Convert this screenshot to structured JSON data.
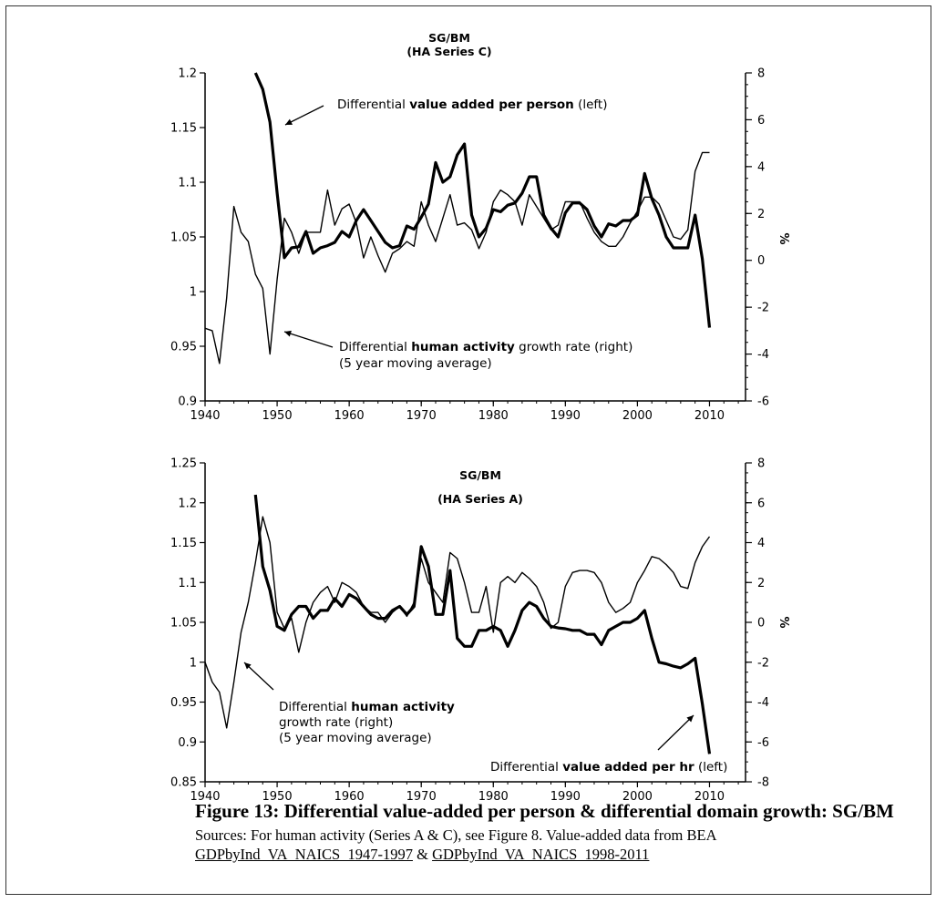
{
  "caption": {
    "title": "Figure 13: Differential value-added per person & differential domain growth: SG/BM",
    "sources_prefix": "Sources: For human activity (Series A & C), see Figure 8. Value-added data from BEA",
    "link1": "GDPbyInd_VA_NAICS_1947-1997",
    "amp": " & ",
    "link2": "GDPbyInd_VA_NAICS_1998-2011"
  },
  "chart_data": [
    {
      "type": "line",
      "title": "SG/BM",
      "subtitle": "(HA Series C)",
      "xlim": [
        1940,
        2015
      ],
      "x_ticks": [
        1940,
        1950,
        1960,
        1970,
        1980,
        1990,
        2000,
        2010
      ],
      "ylim_left": [
        0.9,
        1.2
      ],
      "y_ticks_left": [
        "0.9",
        "0.95",
        "1",
        "1.05",
        "1.1",
        "1.15",
        "1.2"
      ],
      "ylim_right": [
        -6,
        8
      ],
      "y_ticks_right": [
        "-6",
        "-4",
        "-2",
        "0",
        "2",
        "4",
        "6",
        "8"
      ],
      "ylabel_right": "%",
      "series": [
        {
          "axis": "left",
          "style": "bold",
          "annotation_pre": "Differential ",
          "annotation_bold": "value added per person",
          "annotation_post": " (left)",
          "x": [
            1947,
            1948,
            1949,
            1950,
            1951,
            1952,
            1953,
            1954,
            1955,
            1956,
            1957,
            1958,
            1959,
            1960,
            1961,
            1962,
            1963,
            1964,
            1965,
            1966,
            1967,
            1968,
            1969,
            1970,
            1971,
            1972,
            1973,
            1974,
            1975,
            1976,
            1977,
            1978,
            1979,
            1980,
            1981,
            1982,
            1983,
            1984,
            1985,
            1986,
            1987,
            1988,
            1989,
            1990,
            1991,
            1992,
            1993,
            1994,
            1995,
            1996,
            1997,
            1998,
            1999,
            2000,
            2001,
            2002,
            2003,
            2004,
            2005,
            2006,
            2007,
            2008,
            2009,
            2010
          ],
          "y": [
            1.2,
            1.185,
            1.155,
            1.09,
            1.031,
            1.04,
            1.041,
            1.055,
            1.035,
            1.04,
            1.042,
            1.045,
            1.055,
            1.05,
            1.065,
            1.075,
            1.065,
            1.055,
            1.045,
            1.04,
            1.042,
            1.06,
            1.057,
            1.068,
            1.08,
            1.118,
            1.1,
            1.105,
            1.125,
            1.135,
            1.07,
            1.05,
            1.058,
            1.075,
            1.073,
            1.079,
            1.081,
            1.09,
            1.105,
            1.105,
            1.07,
            1.058,
            1.05,
            1.072,
            1.081,
            1.081,
            1.075,
            1.06,
            1.05,
            1.062,
            1.06,
            1.065,
            1.065,
            1.07,
            1.108,
            1.085,
            1.07,
            1.05,
            1.04,
            1.04,
            1.04,
            1.07,
            1.03,
            0.967
          ]
        },
        {
          "axis": "right",
          "style": "thin",
          "annotation_pre": "Differential ",
          "annotation_bold": "human activity",
          "annotation_post": " growth rate (right)",
          "annotation_line2": "(5 year moving average)",
          "x": [
            1940,
            1941,
            1942,
            1943,
            1944,
            1945,
            1946,
            1947,
            1948,
            1949,
            1950,
            1951,
            1952,
            1953,
            1954,
            1955,
            1956,
            1957,
            1958,
            1959,
            1960,
            1961,
            1962,
            1963,
            1964,
            1965,
            1966,
            1967,
            1968,
            1969,
            1970,
            1971,
            1972,
            1973,
            1974,
            1975,
            1976,
            1977,
            1978,
            1979,
            1980,
            1981,
            1982,
            1983,
            1984,
            1985,
            1986,
            1987,
            1988,
            1989,
            1990,
            1991,
            1992,
            1993,
            1994,
            1995,
            1996,
            1997,
            1998,
            1999,
            2000,
            2001,
            2002,
            2003,
            2004,
            2005,
            2006,
            2007,
            2008,
            2009,
            2010
          ],
          "y": [
            -2.9,
            -3.0,
            -4.4,
            -1.6,
            2.3,
            1.2,
            0.8,
            -0.6,
            -1.2,
            -4.0,
            -0.8,
            1.8,
            1.2,
            0.3,
            1.2,
            1.2,
            1.2,
            3.0,
            1.5,
            2.2,
            2.4,
            1.6,
            0.1,
            1.0,
            0.2,
            -0.5,
            0.3,
            0.5,
            0.8,
            0.6,
            2.5,
            1.5,
            0.8,
            1.8,
            2.8,
            1.5,
            1.6,
            1.3,
            0.5,
            1.2,
            2.5,
            3.0,
            2.8,
            2.5,
            1.5,
            2.8,
            2.3,
            1.8,
            1.3,
            1.5,
            2.5,
            2.5,
            2.5,
            1.8,
            1.2,
            0.8,
            0.6,
            0.6,
            1.0,
            1.6,
            2.1,
            2.7,
            2.7,
            2.4,
            1.7,
            1.0,
            0.9,
            1.3,
            3.8,
            4.6,
            4.6
          ]
        }
      ]
    },
    {
      "type": "line",
      "title": "SG/BM",
      "subtitle": "(HA Series A)",
      "xlim": [
        1940,
        2015
      ],
      "x_ticks": [
        1940,
        1950,
        1960,
        1970,
        1980,
        1990,
        2000,
        2010
      ],
      "ylim_left": [
        0.85,
        1.25
      ],
      "y_ticks_left": [
        "0.85",
        "0.9",
        "0.95",
        "1",
        "1.05",
        "1.1",
        "1.15",
        "1.2",
        "1.25"
      ],
      "ylim_right": [
        -8,
        8
      ],
      "y_ticks_right": [
        "-8",
        "-6",
        "-4",
        "-2",
        "0",
        "2",
        "4",
        "6",
        "8"
      ],
      "ylabel_right": "%",
      "series": [
        {
          "axis": "left",
          "style": "bold",
          "annotation_pre": "Differential ",
          "annotation_bold": "value added per hr",
          "annotation_post": " (left)",
          "x": [
            1947,
            1948,
            1949,
            1950,
            1951,
            1952,
            1953,
            1954,
            1955,
            1956,
            1957,
            1958,
            1959,
            1960,
            1961,
            1962,
            1963,
            1964,
            1965,
            1966,
            1967,
            1968,
            1969,
            1970,
            1971,
            1972,
            1973,
            1974,
            1975,
            1976,
            1977,
            1978,
            1979,
            1980,
            1981,
            1982,
            1983,
            1984,
            1985,
            1986,
            1987,
            1988,
            1989,
            1990,
            1991,
            1992,
            1993,
            1994,
            1995,
            1996,
            1997,
            1998,
            1999,
            2000,
            2001,
            2002,
            2003,
            2004,
            2005,
            2006,
            2007,
            2008,
            2009,
            2010
          ],
          "y": [
            1.21,
            1.12,
            1.09,
            1.045,
            1.04,
            1.06,
            1.07,
            1.07,
            1.055,
            1.065,
            1.065,
            1.08,
            1.07,
            1.085,
            1.08,
            1.07,
            1.06,
            1.055,
            1.055,
            1.065,
            1.07,
            1.06,
            1.07,
            1.145,
            1.12,
            1.06,
            1.06,
            1.115,
            1.03,
            1.02,
            1.02,
            1.04,
            1.04,
            1.045,
            1.04,
            1.02,
            1.04,
            1.065,
            1.075,
            1.07,
            1.055,
            1.045,
            1.043,
            1.042,
            1.04,
            1.04,
            1.035,
            1.035,
            1.022,
            1.04,
            1.045,
            1.05,
            1.05,
            1.055,
            1.065,
            1.03,
            1.0,
            0.998,
            0.995,
            0.993,
            0.998,
            1.005,
            0.948,
            0.885
          ]
        },
        {
          "axis": "right",
          "style": "thin",
          "annotation_pre": "Differential ",
          "annotation_bold": "human activity",
          "annotation_line2": "growth rate (right)",
          "annotation_line3": "(5 year moving average)",
          "x": [
            1940,
            1941,
            1942,
            1943,
            1944,
            1945,
            1946,
            1947,
            1948,
            1949,
            1950,
            1951,
            1952,
            1953,
            1954,
            1955,
            1956,
            1957,
            1958,
            1959,
            1960,
            1961,
            1962,
            1963,
            1964,
            1965,
            1966,
            1967,
            1968,
            1969,
            1970,
            1971,
            1972,
            1973,
            1974,
            1975,
            1976,
            1977,
            1978,
            1979,
            1980,
            1981,
            1982,
            1983,
            1984,
            1985,
            1986,
            1987,
            1988,
            1989,
            1990,
            1991,
            1992,
            1993,
            1994,
            1995,
            1996,
            1997,
            1998,
            1999,
            2000,
            2001,
            2002,
            2003,
            2004,
            2005,
            2006,
            2007,
            2008,
            2009,
            2010
          ],
          "y": [
            -2.0,
            -3.0,
            -3.5,
            -5.3,
            -3.0,
            -0.5,
            1.0,
            3.0,
            5.3,
            4.0,
            0.5,
            -0.3,
            0.2,
            -1.5,
            0.0,
            1.0,
            1.5,
            1.8,
            1.0,
            2.0,
            1.8,
            1.5,
            0.8,
            0.5,
            0.5,
            0.0,
            0.5,
            0.8,
            0.3,
            1.0,
            3.2,
            2.0,
            1.5,
            1.0,
            3.5,
            3.2,
            2.0,
            0.5,
            0.5,
            1.8,
            -0.5,
            2.0,
            2.3,
            2.0,
            2.5,
            2.2,
            1.8,
            1.0,
            -0.3,
            0.0,
            1.8,
            2.5,
            2.6,
            2.6,
            2.5,
            2.0,
            1.0,
            0.5,
            0.7,
            1.0,
            2.0,
            2.6,
            3.3,
            3.2,
            2.9,
            2.5,
            1.8,
            1.7,
            3.0,
            3.8,
            4.3
          ]
        }
      ]
    }
  ]
}
